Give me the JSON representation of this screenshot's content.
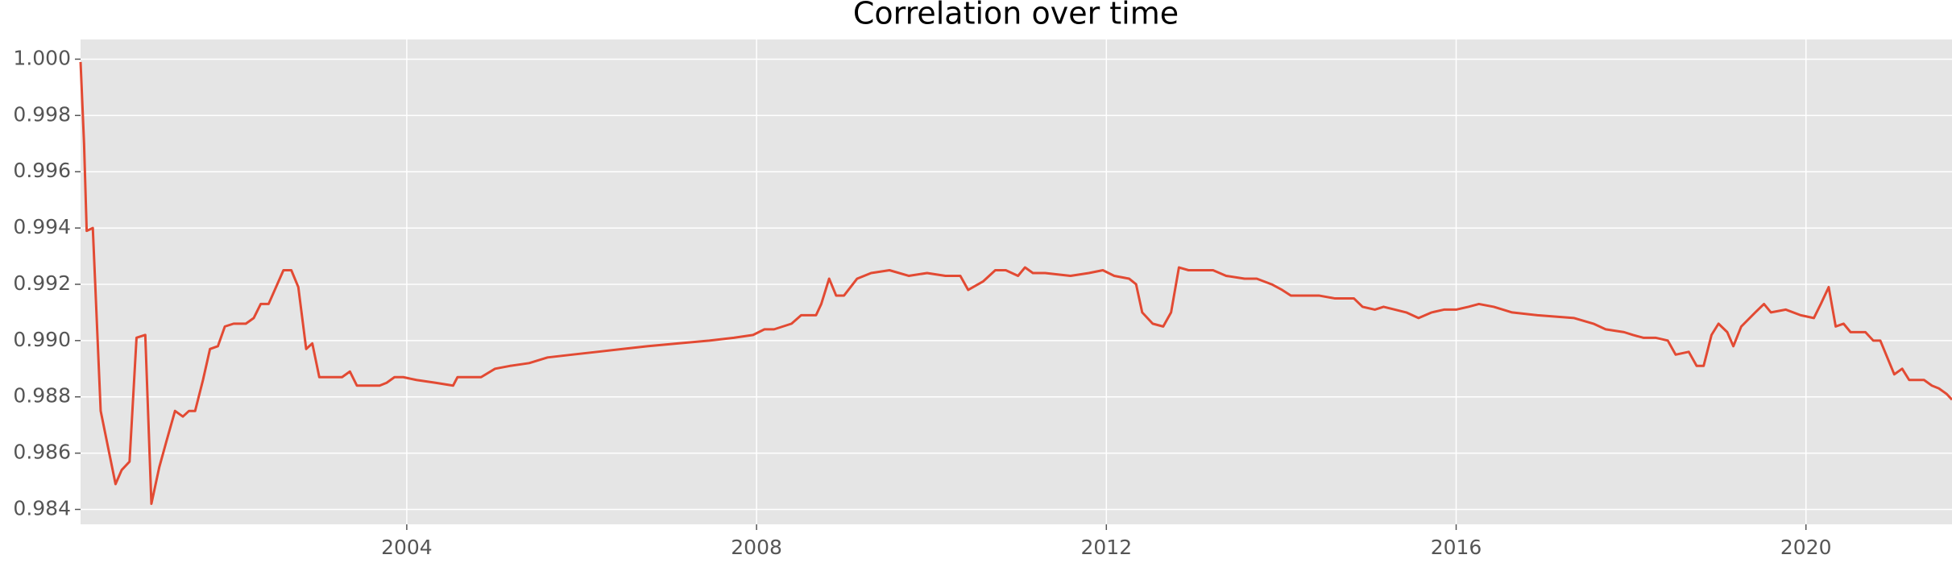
{
  "chart_data": {
    "type": "line",
    "title": "Correlation over time",
    "xlim": [
      2000.27,
      2021.67
    ],
    "xticks": [
      2004,
      2008,
      2012,
      2016,
      2020
    ],
    "ylim": [
      0.98347,
      1.0007
    ],
    "yticks": [
      0.984,
      0.986,
      0.988,
      {
        "value": 0.99,
        "label": "0.990"
      },
      0.992,
      0.994,
      0.996,
      0.998,
      {
        "value": 1,
        "label": "1.000"
      }
    ],
    "grid": true,
    "series": [
      {
        "color": "#e24a33",
        "x": [
          2000.27,
          2000.31,
          2000.34,
          2000.41,
          2000.5,
          2000.67,
          2000.74,
          2000.83,
          2000.91,
          2001.01,
          2001.08,
          2001.17,
          2001.25,
          2001.35,
          2001.44,
          2001.51,
          2001.58,
          2001.67,
          2001.75,
          2001.84,
          2001.92,
          2002.02,
          2002.16,
          2002.25,
          2002.33,
          2002.42,
          2002.59,
          2002.68,
          2002.76,
          2002.85,
          2002.92,
          2003.0,
          2003.26,
          2003.35,
          2003.43,
          2003.52,
          2003.69,
          2003.77,
          2003.86,
          2003.96,
          2004.11,
          2004.33,
          2004.53,
          2004.58,
          2004.75,
          2004.85,
          2005.01,
          2005.18,
          2005.4,
          2005.61,
          2005.89,
          2006.18,
          2006.46,
          2006.75,
          2007.1,
          2007.46,
          2007.74,
          2007.96,
          2008.09,
          2008.2,
          2008.4,
          2008.51,
          2008.68,
          2008.74,
          2008.83,
          2008.91,
          2009.0,
          2009.15,
          2009.31,
          2009.52,
          2009.74,
          2009.95,
          2010.16,
          2010.33,
          2010.42,
          2010.59,
          2010.73,
          2010.85,
          2010.99,
          2011.07,
          2011.16,
          2011.3,
          2011.59,
          2011.8,
          2011.96,
          2012.09,
          2012.26,
          2012.34,
          2012.41,
          2012.53,
          2012.65,
          2012.74,
          2012.83,
          2012.94,
          2013.22,
          2013.37,
          2013.58,
          2013.72,
          2013.89,
          2014.01,
          2014.11,
          2014.22,
          2014.43,
          2014.61,
          2014.83,
          2014.93,
          2015.07,
          2015.17,
          2015.43,
          2015.57,
          2015.72,
          2015.86,
          2016.0,
          2016.14,
          2016.26,
          2016.43,
          2016.64,
          2016.93,
          2017.35,
          2017.57,
          2017.71,
          2017.92,
          2018.02,
          2018.14,
          2018.28,
          2018.42,
          2018.51,
          2018.66,
          2018.75,
          2018.83,
          2018.92,
          2019.0,
          2019.1,
          2019.17,
          2019.26,
          2019.42,
          2019.52,
          2019.6,
          2019.77,
          2019.94,
          2020.09,
          2020.17,
          2020.26,
          2020.34,
          2020.43,
          2020.51,
          2020.68,
          2020.77,
          2020.85,
          2020.93,
          2021.01,
          2021.1,
          2021.18,
          2021.35,
          2021.44,
          2021.52,
          2021.61,
          2021.67
        ],
        "values": [
          0.9999,
          0.997,
          0.9939,
          0.994,
          0.9875,
          0.9849,
          0.9854,
          0.9857,
          0.9901,
          0.9902,
          0.9842,
          0.9855,
          0.9864,
          0.9875,
          0.9873,
          0.9875,
          0.9875,
          0.9886,
          0.9897,
          0.9898,
          0.9905,
          0.9906,
          0.9906,
          0.9908,
          0.9913,
          0.9913,
          0.9925,
          0.9925,
          0.9919,
          0.9897,
          0.9899,
          0.9887,
          0.9887,
          0.9889,
          0.9884,
          0.9884,
          0.9884,
          0.9885,
          0.9887,
          0.9887,
          0.9886,
          0.9885,
          0.9884,
          0.9887,
          0.9887,
          0.9887,
          0.989,
          0.9891,
          0.9892,
          0.9894,
          0.9895,
          0.9896,
          0.9897,
          0.9898,
          0.9899,
          0.99,
          0.9901,
          0.9902,
          0.9904,
          0.9904,
          0.9906,
          0.9909,
          0.9909,
          0.9913,
          0.9922,
          0.9916,
          0.9916,
          0.9922,
          0.9924,
          0.9925,
          0.9923,
          0.9924,
          0.9923,
          0.9923,
          0.9918,
          0.9921,
          0.9925,
          0.9925,
          0.9923,
          0.9926,
          0.9924,
          0.9924,
          0.9923,
          0.9924,
          0.9925,
          0.9923,
          0.9922,
          0.992,
          0.991,
          0.9906,
          0.9905,
          0.991,
          0.9926,
          0.9925,
          0.9925,
          0.9923,
          0.9922,
          0.9922,
          0.992,
          0.9918,
          0.9916,
          0.9916,
          0.9916,
          0.9915,
          0.9915,
          0.9912,
          0.9911,
          0.9912,
          0.991,
          0.9908,
          0.991,
          0.9911,
          0.9911,
          0.9912,
          0.9913,
          0.9912,
          0.991,
          0.9909,
          0.9908,
          0.9906,
          0.9904,
          0.9903,
          0.9902,
          0.9901,
          0.9901,
          0.99,
          0.9895,
          0.9896,
          0.9891,
          0.9891,
          0.9902,
          0.9906,
          0.9903,
          0.9898,
          0.9905,
          0.991,
          0.9913,
          0.991,
          0.9911,
          0.9909,
          0.9908,
          0.9913,
          0.9919,
          0.9905,
          0.9906,
          0.9903,
          0.9903,
          0.99,
          0.99,
          0.9894,
          0.9888,
          0.989,
          0.9886,
          0.9886,
          0.9884,
          0.9883,
          0.9881,
          0.9879
        ]
      }
    ]
  }
}
